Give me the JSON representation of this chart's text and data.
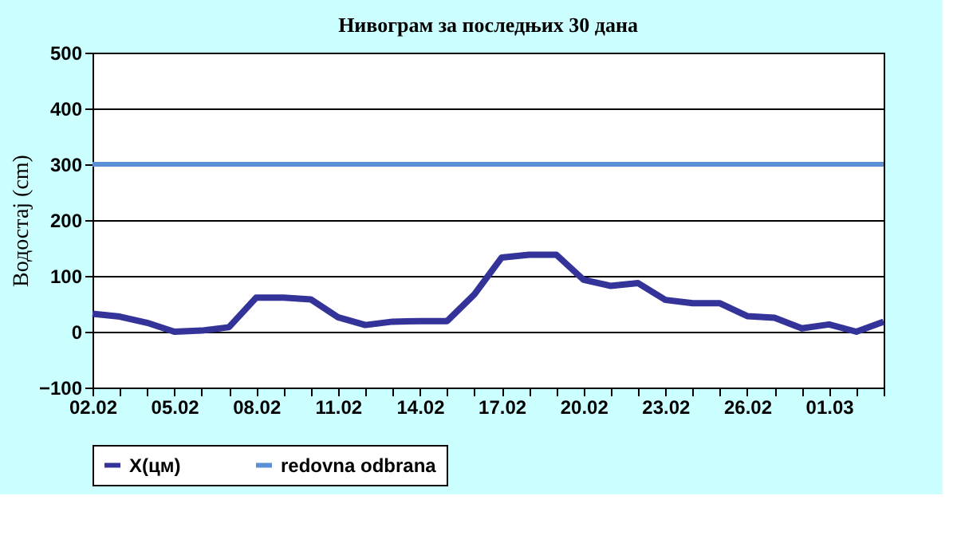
{
  "chart_data": {
    "type": "line",
    "title": "Нивограм за последњих 30 дана",
    "ylabel": "Водостај (cm)",
    "categories": [
      "02.02",
      null,
      null,
      "05.02",
      null,
      null,
      "08.02",
      null,
      null,
      "11.02",
      null,
      null,
      "14.02",
      null,
      null,
      "17.02",
      null,
      null,
      "20.02",
      null,
      null,
      "23.02",
      null,
      null,
      "26.02",
      null,
      null,
      "01.03",
      null,
      null
    ],
    "series": [
      {
        "name": "X(цм)",
        "color": "#333399",
        "values": [
          32,
          27,
          16,
          0,
          2,
          8,
          61,
          61,
          58,
          26,
          12,
          18,
          19,
          19,
          67,
          133,
          138,
          138,
          93,
          82,
          87,
          57,
          51,
          51,
          28,
          25,
          6,
          13,
          0,
          18
        ]
      }
    ],
    "ref_lines": [
      {
        "axis": "y",
        "value": 300,
        "label": "redovna odbrana",
        "color": "#5b8fd6"
      }
    ],
    "ylim": [
      -100,
      500
    ],
    "yticks": [
      -100,
      0,
      100,
      200,
      300,
      400,
      500
    ],
    "grid": "y",
    "legend": "bottom",
    "marker": "none",
    "line_style": "solid"
  }
}
